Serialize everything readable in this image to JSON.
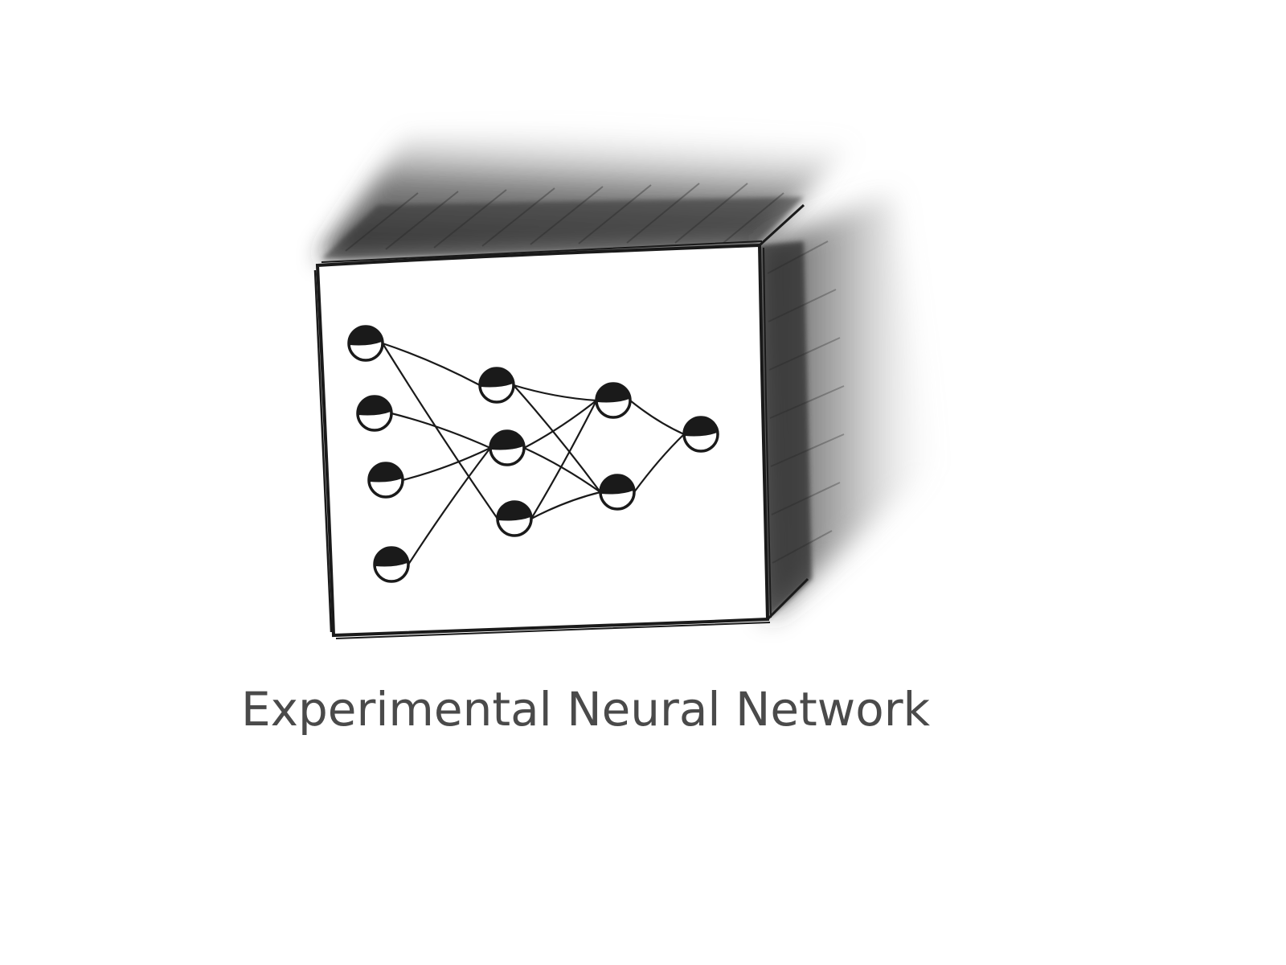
{
  "caption": "Experimental Neural Network",
  "colors": {
    "ink": "#1a1a1a",
    "caption": "#4a4a4a",
    "shade": "#3a3a3a",
    "paper": "#ffffff"
  },
  "icons": {
    "box": "sketched-cube-icon",
    "node": "filled-circle-node-icon"
  },
  "network": {
    "layers": [
      4,
      3,
      2,
      1
    ],
    "edges": [
      [
        [
          0,
          0
        ],
        [
          1,
          0
        ]
      ],
      [
        [
          0,
          0
        ],
        [
          1,
          2
        ]
      ],
      [
        [
          0,
          1
        ],
        [
          1,
          1
        ]
      ],
      [
        [
          0,
          2
        ],
        [
          1,
          1
        ]
      ],
      [
        [
          0,
          3
        ],
        [
          1,
          1
        ]
      ],
      [
        [
          1,
          0
        ],
        [
          2,
          0
        ]
      ],
      [
        [
          1,
          0
        ],
        [
          2,
          1
        ]
      ],
      [
        [
          1,
          1
        ],
        [
          2,
          0
        ]
      ],
      [
        [
          1,
          1
        ],
        [
          2,
          1
        ]
      ],
      [
        [
          1,
          2
        ],
        [
          2,
          0
        ]
      ],
      [
        [
          1,
          2
        ],
        [
          2,
          1
        ]
      ],
      [
        [
          2,
          0
        ],
        [
          3,
          0
        ]
      ],
      [
        [
          2,
          1
        ],
        [
          3,
          0
        ]
      ]
    ]
  }
}
